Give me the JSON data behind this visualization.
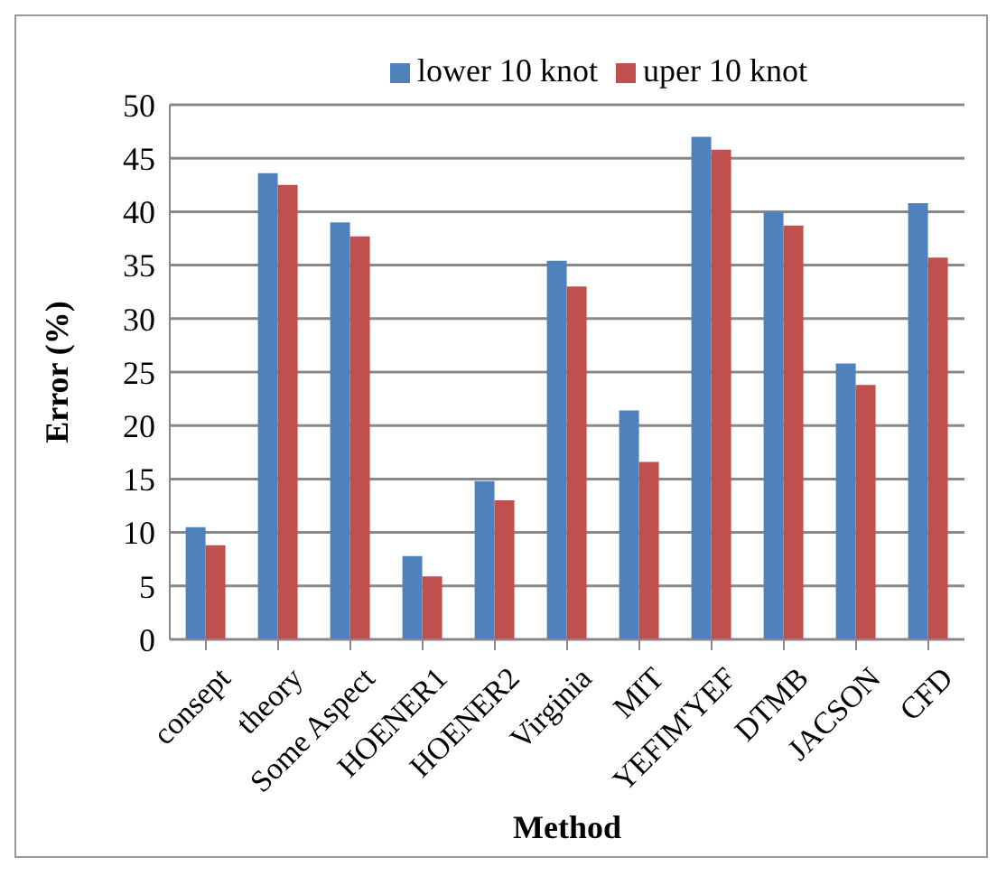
{
  "chart_data": {
    "type": "bar",
    "xlabel": "Method",
    "ylabel": "Error (%)",
    "categories": [
      "consept",
      "theory",
      "Some Aspect",
      "HOENER1",
      "HOENER2",
      "Virginia",
      "MIT",
      "YEFIM'YEF",
      "DTMB",
      "JACSON",
      "CFD"
    ],
    "series": [
      {
        "name": "lower 10 knot",
        "color": "#4f81bd",
        "values": [
          10.5,
          43.6,
          39,
          7.8,
          14.8,
          35.4,
          21.4,
          47,
          40,
          25.8,
          40.8
        ]
      },
      {
        "name": "uper 10 knot",
        "color": "#c0504d",
        "values": [
          8.8,
          42.5,
          37.7,
          5.9,
          13,
          33,
          16.6,
          45.8,
          38.7,
          23.8,
          35.7
        ]
      }
    ],
    "ylim": [
      0,
      50
    ],
    "yticks": [
      0,
      5,
      10,
      15,
      20,
      25,
      30,
      35,
      40,
      45,
      50
    ],
    "grid": "y",
    "legend": "top"
  }
}
